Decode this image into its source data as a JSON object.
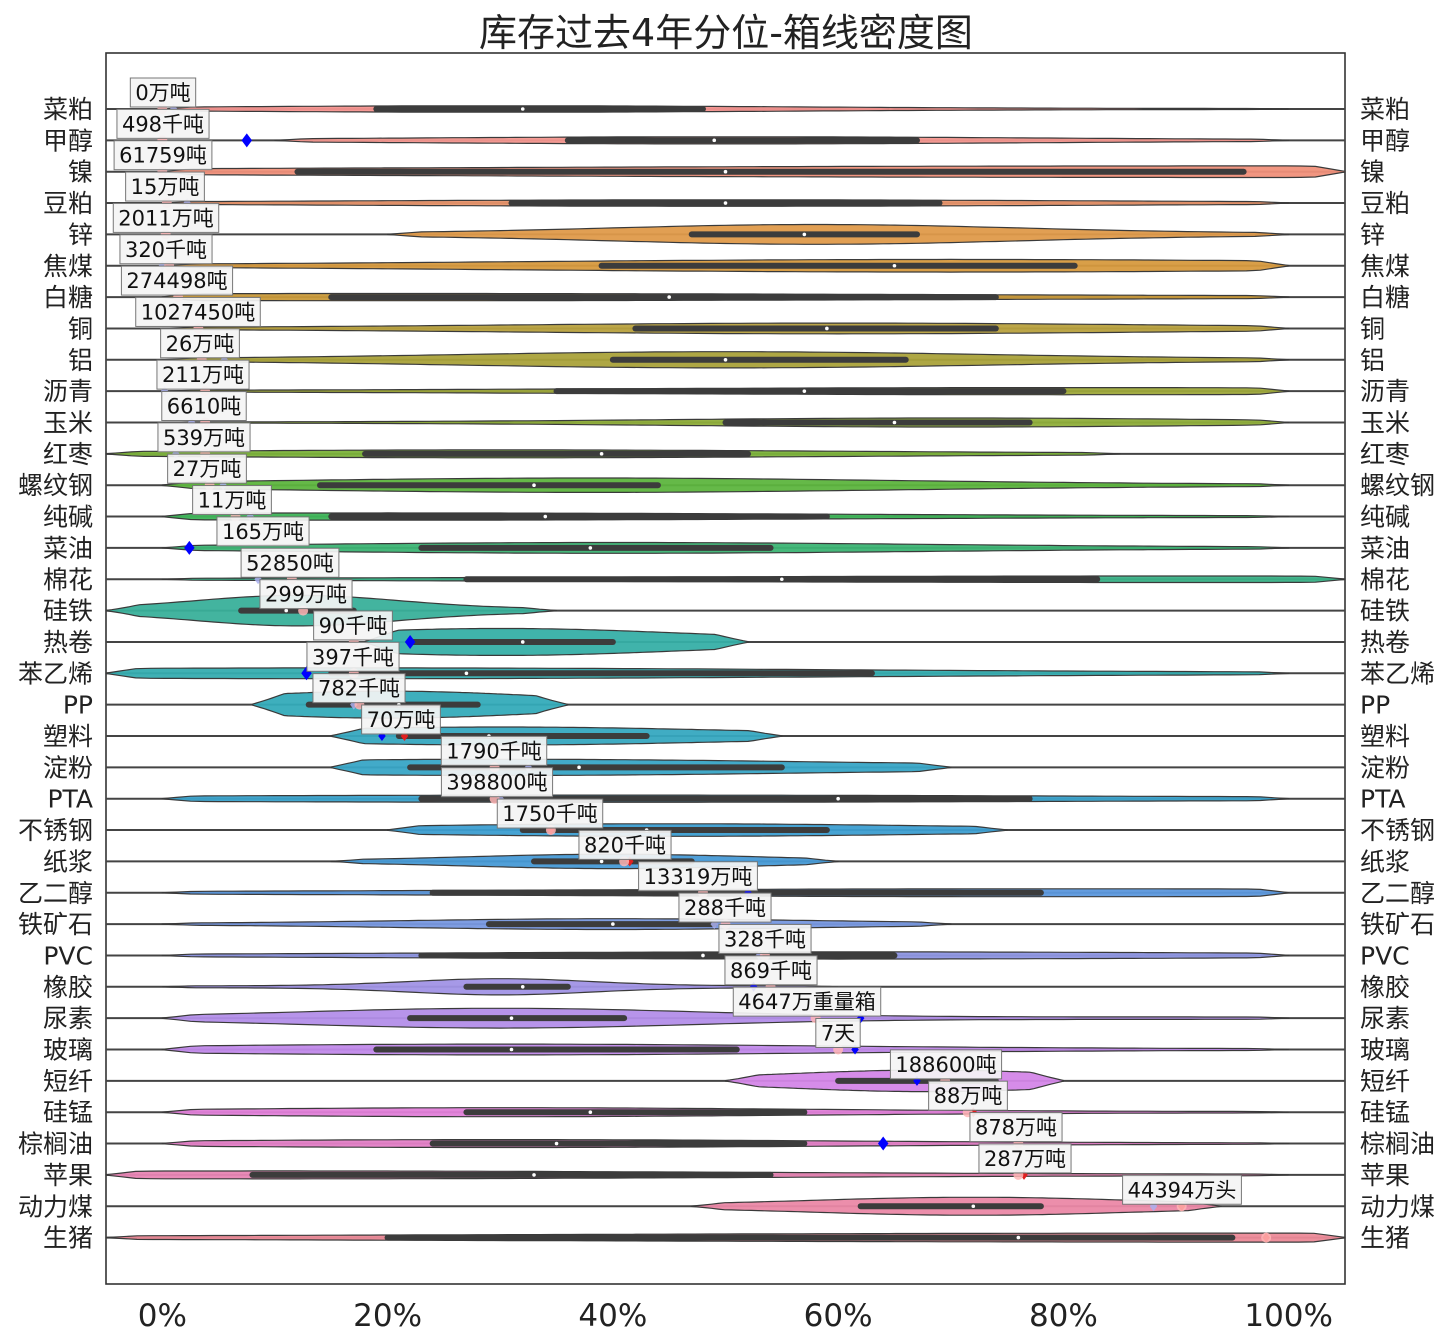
{
  "chart_data": {
    "type": "violin",
    "title": "库存过去4年分位-箱线密度图",
    "xlabel": "",
    "ylabel": "",
    "xlim": [
      -5,
      105
    ],
    "x_ticks": [
      "0%",
      "20%",
      "40%",
      "60%",
      "80%",
      "100%"
    ],
    "x_tick_values": [
      0,
      20,
      40,
      60,
      80,
      100
    ],
    "grid": false,
    "rows": [
      {
        "name": "菜粕",
        "label": "0万吨",
        "color": "#f5938f",
        "q1": 19,
        "median": 32,
        "q3": 48,
        "wmin": 0,
        "wmax": 100,
        "width": 0.18,
        "peak": 30,
        "markers": [
          {
            "x": 1,
            "c": "#aab0f0"
          },
          {
            "x": 0,
            "c": "#ffb6b6"
          }
        ]
      },
      {
        "name": "甲醇",
        "label": "498千吨",
        "color": "#f4978f",
        "q1": 36,
        "median": 49,
        "q3": 67,
        "wmin": 10,
        "wmax": 100,
        "width": 0.2,
        "peak": 50,
        "markers": [
          {
            "x": 7.5,
            "c": "#0000ff",
            "big": true
          },
          {
            "x": 0,
            "c": "#ffb6b6"
          }
        ]
      },
      {
        "name": "镍",
        "label": "61759吨",
        "color": "#f0907a",
        "q1": 12,
        "median": 50,
        "q3": 96,
        "wmin": 0,
        "wmax": 105,
        "width": 0.32,
        "peak": 95,
        "markers": [
          {
            "x": 0,
            "c": "#ffb6b6"
          }
        ]
      },
      {
        "name": "豆粕",
        "label": "15万吨",
        "color": "#e8936a",
        "q1": 31,
        "median": 50,
        "q3": 69,
        "wmin": 0,
        "wmax": 100,
        "width": 0.18,
        "peak": 50,
        "markers": [
          {
            "x": 2.2,
            "c": "#aab0f0"
          },
          {
            "x": 0.4,
            "c": "#ffb6b6"
          }
        ]
      },
      {
        "name": "锌",
        "label": "2011万吨",
        "color": "#df9a4a",
        "q1": 47,
        "median": 57,
        "q3": 67,
        "wmin": 20,
        "wmax": 100,
        "width": 0.55,
        "peak": 58,
        "markers": [
          {
            "x": 0.3,
            "c": "#ffb6b6"
          }
        ]
      },
      {
        "name": "焦煤",
        "label": "320千吨",
        "color": "#d79a3e",
        "q1": 39,
        "median": 65,
        "q3": 81,
        "wmin": 0,
        "wmax": 100,
        "width": 0.35,
        "peak": 70,
        "markers": [
          {
            "x": 0,
            "c": "#aab0f0"
          },
          {
            "x": 0.6,
            "c": "#ffb6b6"
          }
        ]
      },
      {
        "name": "白糖",
        "label": "274498吨",
        "color": "#c99a3a",
        "q1": 15,
        "median": 45,
        "q3": 74,
        "wmin": 0,
        "wmax": 100,
        "width": 0.2,
        "peak": 20,
        "markers": [
          {
            "x": 1.4,
            "c": "#ffb6b6"
          }
        ]
      },
      {
        "name": "铜",
        "label": "1027450吨",
        "color": "#b8a13e",
        "q1": 42,
        "median": 59,
        "q3": 74,
        "wmin": 0,
        "wmax": 100,
        "width": 0.3,
        "peak": 60,
        "markers": [
          {
            "x": 3.2,
            "c": "#ffb6b6"
          }
        ]
      },
      {
        "name": "铝",
        "label": "26万吨",
        "color": "#aaa23a",
        "q1": 40,
        "median": 50,
        "q3": 66,
        "wmin": 0,
        "wmax": 100,
        "width": 0.45,
        "peak": 50,
        "markers": [
          {
            "x": 5.5,
            "c": "#aab0f0"
          },
          {
            "x": 3.5,
            "c": "#ffb6b6"
          }
        ]
      },
      {
        "name": "沥青",
        "label": "211万吨",
        "color": "#9ea83a",
        "q1": 35,
        "median": 57,
        "q3": 80,
        "wmin": 0,
        "wmax": 100,
        "width": 0.2,
        "peak": 80,
        "markers": [
          {
            "x": 0.2,
            "c": "#aab0f0"
          },
          {
            "x": 3.8,
            "c": "#ffb6b6"
          }
        ]
      },
      {
        "name": "玉米",
        "label": "6610吨",
        "color": "#8fae3a",
        "q1": 50,
        "median": 65,
        "q3": 77,
        "wmin": 0,
        "wmax": 100,
        "width": 0.25,
        "peak": 70,
        "markers": [
          {
            "x": 2.6,
            "c": "#aab0f0"
          },
          {
            "x": 3.8,
            "c": "#ffb6b6"
          }
        ]
      },
      {
        "name": "红枣",
        "label": "539万吨",
        "color": "#7cb33a",
        "q1": 18,
        "median": 39,
        "q3": 52,
        "wmin": -5,
        "wmax": 85,
        "width": 0.22,
        "peak": 30,
        "markers": [
          {
            "x": 1.2,
            "c": "#aab0f0"
          },
          {
            "x": 3.8,
            "c": "#ffb6b6"
          }
        ]
      },
      {
        "name": "螺纹钢",
        "label": "27万吨",
        "color": "#5db53e",
        "q1": 14,
        "median": 33,
        "q3": 44,
        "wmin": 0,
        "wmax": 100,
        "width": 0.4,
        "peak": 38,
        "markers": [
          {
            "x": 5.4,
            "c": "#aab0f0"
          },
          {
            "x": 4.2,
            "c": "#ffb6b6"
          }
        ]
      },
      {
        "name": "纯碱",
        "label": "11万吨",
        "color": "#3eb558",
        "q1": 15,
        "median": 34,
        "q3": 59,
        "wmin": 0,
        "wmax": 100,
        "width": 0.2,
        "peak": 20,
        "markers": [
          {
            "x": 7.8,
            "c": "#aab0f0"
          },
          {
            "x": 6.5,
            "c": "#ffb6b6"
          }
        ]
      },
      {
        "name": "菜油",
        "label": "165万吨",
        "color": "#3cb474",
        "q1": 23,
        "median": 38,
        "q3": 54,
        "wmin": 0,
        "wmax": 100,
        "width": 0.3,
        "peak": 40,
        "markers": [
          {
            "x": 2.4,
            "c": "#0000ff",
            "big": true
          }
        ]
      },
      {
        "name": "棉花",
        "label": "52850吨",
        "color": "#3bb288",
        "q1": 27,
        "median": 55,
        "q3": 83,
        "wmin": 0,
        "wmax": 105,
        "width": 0.18,
        "peak": 90,
        "markers": [
          {
            "x": 8.5,
            "c": "#aab0f0"
          },
          {
            "x": 11.5,
            "c": "#ffb6b6"
          }
        ]
      },
      {
        "name": "硅铁",
        "label": "299万吨",
        "color": "#39b09a",
        "q1": 7,
        "median": 11,
        "q3": 17,
        "wmin": -5,
        "wmax": 35,
        "width": 0.85,
        "peak": 12,
        "markers": [
          {
            "x": 12.5,
            "c": "#ffb6b6"
          }
        ]
      },
      {
        "name": "热卷",
        "label": "90千吨",
        "color": "#36afa6",
        "q1": 22,
        "median": 32,
        "q3": 40,
        "wmin": 18,
        "wmax": 52,
        "width": 0.75,
        "peak": 30,
        "markers": [
          {
            "x": 22,
            "c": "#0000ff",
            "big": true
          },
          {
            "x": 17,
            "c": "#ffb6b6"
          }
        ]
      },
      {
        "name": "苯乙烯",
        "label": "397千吨",
        "color": "#35adb0",
        "q1": 15,
        "median": 27,
        "q3": 63,
        "wmin": -5,
        "wmax": 100,
        "width": 0.3,
        "peak": 17,
        "markers": [
          {
            "x": 12.8,
            "c": "#0000ff",
            "big": true
          },
          {
            "x": 17,
            "c": "#ffb6b6"
          }
        ]
      },
      {
        "name": "PP",
        "label": "782千吨",
        "color": "#34abb9",
        "q1": 13,
        "median": 21,
        "q3": 28,
        "wmin": 8,
        "wmax": 36,
        "width": 0.75,
        "peak": 20,
        "markers": [
          {
            "x": 17,
            "c": "#aab0f0"
          },
          {
            "x": 17.5,
            "c": "#ffb6b6"
          }
        ]
      },
      {
        "name": "塑料",
        "label": "70万吨",
        "color": "#36a8c0",
        "q1": 21,
        "median": 29,
        "q3": 43,
        "wmin": 15,
        "wmax": 55,
        "width": 0.5,
        "peak": 30,
        "markers": [
          {
            "x": 19.5,
            "c": "#0000ff"
          },
          {
            "x": 21.5,
            "c": "#e02020"
          }
        ]
      },
      {
        "name": "淀粉",
        "label": "1790千吨",
        "color": "#38a5c6",
        "q1": 22,
        "median": 37,
        "q3": 55,
        "wmin": 15,
        "wmax": 70,
        "width": 0.45,
        "peak": 30,
        "markers": [
          {
            "x": 32.5,
            "c": "#aab0f0"
          },
          {
            "x": 29.5,
            "c": "#ffb6b6"
          }
        ]
      },
      {
        "name": "PTA",
        "label": "398800吨",
        "color": "#3aa2cb",
        "q1": 23,
        "median": 60,
        "q3": 77,
        "wmin": 0,
        "wmax": 100,
        "width": 0.2,
        "peak": 40,
        "markers": [
          {
            "x": 30,
            "c": "#aab0f0"
          },
          {
            "x": 29.5,
            "c": "#ffb6b6"
          }
        ]
      },
      {
        "name": "不锈钢",
        "label": "1750千吨",
        "color": "#3c9ed1",
        "q1": 32,
        "median": 43,
        "q3": 59,
        "wmin": 20,
        "wmax": 75,
        "width": 0.35,
        "peak": 45,
        "markers": [
          {
            "x": 34.5,
            "c": "#e02020"
          },
          {
            "x": 34.5,
            "c": "#ffb6b6"
          }
        ]
      },
      {
        "name": "纸浆",
        "label": "820千吨",
        "color": "#479ad6",
        "q1": 33,
        "median": 39,
        "q3": 47,
        "wmin": 15,
        "wmax": 60,
        "width": 0.4,
        "peak": 40,
        "markers": [
          {
            "x": 41.5,
            "c": "#e02020"
          },
          {
            "x": 41,
            "c": "#ffb6b6"
          }
        ]
      },
      {
        "name": "乙二醇",
        "label": "13319万吨",
        "color": "#5c98dd",
        "q1": 24,
        "median": 52,
        "q3": 78,
        "wmin": 0,
        "wmax": 100,
        "width": 0.22,
        "peak": 80,
        "markers": [
          {
            "x": 52,
            "c": "#0000ff"
          },
          {
            "x": 48,
            "c": "#ffb6b6"
          }
        ]
      },
      {
        "name": "铁矿石",
        "label": "288千吨",
        "color": "#7798e0",
        "q1": 29,
        "median": 40,
        "q3": 49,
        "wmin": 0,
        "wmax": 70,
        "width": 0.3,
        "peak": 40,
        "markers": [
          {
            "x": 49,
            "c": "#aab0f0"
          },
          {
            "x": 50,
            "c": "#ffb6b6"
          }
        ]
      },
      {
        "name": "PVC",
        "label": "328千吨",
        "color": "#8e96e3",
        "q1": 23,
        "median": 48,
        "q3": 65,
        "wmin": 0,
        "wmax": 100,
        "width": 0.2,
        "peak": 60,
        "markers": [
          {
            "x": 53,
            "c": "#aab0f0"
          },
          {
            "x": 53.5,
            "c": "#ffb6b6"
          }
        ]
      },
      {
        "name": "橡胶",
        "label": "869千吨",
        "color": "#a193e6",
        "q1": 27,
        "median": 32,
        "q3": 36,
        "wmin": 0,
        "wmax": 60,
        "width": 0.45,
        "peak": 30,
        "markers": [
          {
            "x": 52.5,
            "c": "#0000ff"
          },
          {
            "x": 54,
            "c": "#ffb6b6"
          }
        ]
      },
      {
        "name": "尿素",
        "label": "4647万重量箱",
        "color": "#b38ee9",
        "q1": 22,
        "median": 31,
        "q3": 41,
        "wmin": 0,
        "wmax": 100,
        "width": 0.55,
        "peak": 30,
        "markers": [
          {
            "x": 62,
            "c": "#0000ff"
          },
          {
            "x": 58,
            "c": "#ffb6b6"
          }
        ]
      },
      {
        "name": "玻璃",
        "label": "7天",
        "color": "#c189ea",
        "q1": 19,
        "median": 31,
        "q3": 51,
        "wmin": 0,
        "wmax": 100,
        "width": 0.3,
        "peak": 30,
        "markers": [
          {
            "x": 61.5,
            "c": "#0000ff"
          },
          {
            "x": 60,
            "c": "#ffb6b6"
          }
        ]
      },
      {
        "name": "短纤",
        "label": "188600吨",
        "color": "#d486e8",
        "q1": 60,
        "median": 67,
        "q3": 74,
        "wmin": 50,
        "wmax": 80,
        "width": 0.6,
        "peak": 68,
        "markers": [
          {
            "x": 67,
            "c": "#0000ff"
          },
          {
            "x": 69.5,
            "c": "#ffb6b6"
          }
        ]
      },
      {
        "name": "硅锰",
        "label": "88万吨",
        "color": "#e17fd9",
        "q1": 27,
        "median": 38,
        "q3": 57,
        "wmin": 0,
        "wmax": 100,
        "width": 0.25,
        "peak": 30,
        "markers": [
          {
            "x": 72,
            "c": "#e02020"
          },
          {
            "x": 71.5,
            "c": "#ffb6b6"
          }
        ]
      },
      {
        "name": "棕榈油",
        "label": "878万吨",
        "color": "#e47fc7",
        "q1": 24,
        "median": 35,
        "q3": 57,
        "wmin": 0,
        "wmax": 100,
        "width": 0.22,
        "peak": 30,
        "markers": [
          {
            "x": 64,
            "c": "#0000ff",
            "big": true
          },
          {
            "x": 76,
            "c": "#ffb6b6"
          }
        ]
      },
      {
        "name": "苹果",
        "label": "287万吨",
        "color": "#e885b4",
        "q1": 8,
        "median": 33,
        "q3": 54,
        "wmin": -5,
        "wmax": 100,
        "width": 0.22,
        "peak": 10,
        "markers": [
          {
            "x": 76.5,
            "c": "#e02020"
          },
          {
            "x": 76,
            "c": "#ffb6b6"
          }
        ]
      },
      {
        "name": "动力煤",
        "label": "44394万头",
        "color": "#eb88a6",
        "q1": 62,
        "median": 72,
        "q3": 78,
        "wmin": 47,
        "wmax": 94,
        "width": 0.5,
        "peak": 72,
        "markers": [
          {
            "x": 88,
            "c": "#aab0f0"
          },
          {
            "x": 90.5,
            "c": "#e02020"
          },
          {
            "x": 90.5,
            "c": "#ffb6b6"
          }
        ]
      },
      {
        "name": "生猪",
        "label": "",
        "color": "#ec8a98",
        "q1": 20,
        "median": 76,
        "q3": 95,
        "wmin": -5,
        "wmax": 105,
        "width": 0.25,
        "peak": 98,
        "markers": [
          {
            "x": 98,
            "c": "#e02020"
          },
          {
            "x": 98,
            "c": "#ffb6b6"
          }
        ]
      }
    ]
  }
}
